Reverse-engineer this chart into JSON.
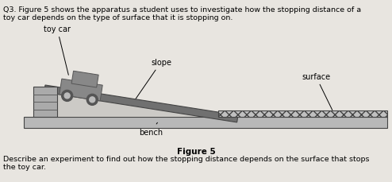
{
  "bg_color": "#e8e5e0",
  "diagram_bg": "#d8d5d0",
  "title_text1": "Q3. Figure 5 shows the apparatus a student uses to investigate how the stopping distance of a",
  "title_text2": "toy car depends on the type of surface that it is stopping on.",
  "figure_label": "Figure 5",
  "bottom_text1": "Describe an experiment to find out how the stopping distance depends on the surface that stops",
  "bottom_text2": "the toy car.",
  "label_toy_car": "toy car",
  "label_slope": "slope",
  "label_surface": "surface",
  "label_bench": "bench",
  "bench_color": "#b8b8b8",
  "bench_edge_color": "#444444",
  "slope_color": "#707070",
  "slope_top_color": "#909090",
  "surface_fill": "#c0c0c0",
  "car_body_color": "#888888",
  "car_dark": "#555555",
  "support_color": "#aaaaaa",
  "support_line_color": "#555555",
  "white_area": "#dcdad6"
}
